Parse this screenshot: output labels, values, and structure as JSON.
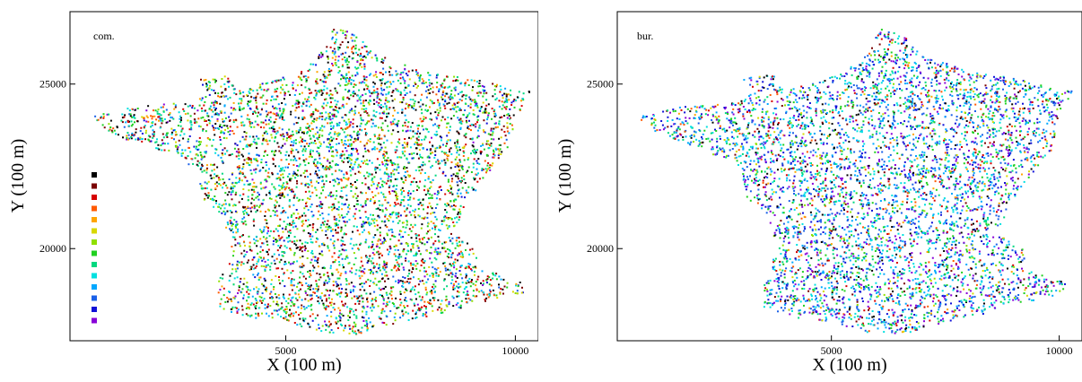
{
  "chart_data": [
    {
      "type": "scatter",
      "panel_label": "com.",
      "xlabel": "X  (100 m)",
      "ylabel": "Y  (100 m)",
      "xlim": [
        300,
        10500
      ],
      "ylim": [
        17200,
        27200
      ],
      "x_ticks": [
        5000,
        10000
      ],
      "y_ticks": [
        20000,
        25000
      ],
      "grid": false,
      "legend": "left",
      "color_scale": [
        "#000000",
        "#7a0000",
        "#d60000",
        "#ff5a00",
        "#ffa500",
        "#d8d800",
        "#90e000",
        "#20d020",
        "#00d880",
        "#00e0e0",
        "#00a8ff",
        "#1a60e8",
        "#1010d8",
        "#8800d8"
      ],
      "color_weights": [
        10,
        7,
        8,
        6,
        4,
        4,
        6,
        14,
        12,
        10,
        7,
        5,
        4,
        3
      ]
    },
    {
      "type": "scatter",
      "panel_label": "bur.",
      "xlabel": "X  (100 m)",
      "ylabel": "Y  (100 m)",
      "xlim": [
        300,
        10500
      ],
      "ylim": [
        17200,
        27200
      ],
      "x_ticks": [
        5000,
        10000
      ],
      "y_ticks": [
        20000,
        25000
      ],
      "grid": false,
      "color_scale": [
        "#000000",
        "#7a0000",
        "#d60000",
        "#ff5a00",
        "#ffa500",
        "#d8d800",
        "#90e000",
        "#20d020",
        "#00d880",
        "#00e0e0",
        "#00a8ff",
        "#1a60e8",
        "#1010d8",
        "#8800d8"
      ],
      "color_weights": [
        5,
        3,
        4,
        3,
        2,
        2,
        3,
        8,
        8,
        12,
        14,
        14,
        12,
        10
      ]
    }
  ]
}
